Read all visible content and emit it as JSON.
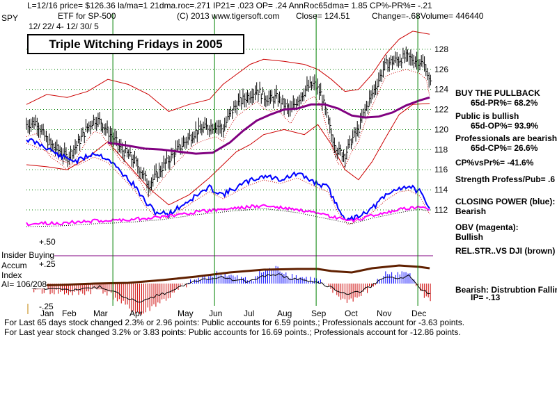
{
  "header": {
    "ticker": "SPY",
    "line1": "L=12/16  price= $126.36  la/ma=1 21dma.roc=.271 IP21= .023 OP= .24 AnnRoc65dma= 1.85 CP%-PR%= -.21",
    "etf": "ETF for SP-500",
    "copyright": "(C) 2013 www.tigersoft.com",
    "close": "Close=  124.51",
    "change": "Change=-.68",
    "volume": "Volume= 446440",
    "date_range": "12/ 22/ 4- 12/ 30/ 5"
  },
  "chart_title": "Triple Witching Fridays in 2005",
  "annotations": {
    "buy_pullback": "BUY THE PULLBACK",
    "pr": "65d-PR%= 68.2%",
    "public_bullish": "Public is bullish",
    "op": "65d-OP%= 93.9%",
    "pros_bearish": "Professionals are bearish",
    "cp": "65d-CP%= 26.6%",
    "cpvspr": "CP%vsPr%= -41.6%",
    "strength": "Strength Profess/Pub= .6",
    "closing_power_label": "CLOSING POWER (blue):",
    "closing_power_value": "Bearish",
    "obv_label": "OBV (magenta):",
    "obv_value": "Bullish",
    "rel_str": "REL.STR..VS DJI (brown)",
    "bearish_label": "Bearish:  Distrubtion Falling",
    "ip": "IP= -.13"
  },
  "lower_panel": {
    "insider_buying": "Insider Buying",
    "accum": "Accum",
    "index": "Index",
    "ai": "AI= 106/208",
    "plus50": "+.50",
    "plus25": "+.25",
    "minus25": "-.25"
  },
  "footer": {
    "line1": "For Last 65 days stock changed  2.3% or  2.96 points:  Public accounts for  6.59 points.;  Professionals account for -3.63 points.",
    "line2": "For Last year stock changed  3.2% or  3.83 points:  Public accounts for  16.69 points.;  Professionals account for -12.86 points."
  },
  "colors": {
    "price": "#000000",
    "band": "#cc0000",
    "ma65": "#800080",
    "closing_power": "#0000ff",
    "obv": "#ff00ff",
    "grid": "#008000",
    "witching": "#008000",
    "accum_pos": "#0000ff",
    "accum_neg": "#cc0000",
    "rel_str": "#602000"
  },
  "chart_data": {
    "type": "line",
    "title": "Triple Witching Fridays in 2005",
    "ticker": "SPY",
    "months": [
      "Jan",
      "Feb",
      "Mar",
      "Apr",
      "May",
      "Jun",
      "Jul",
      "Aug",
      "Sep",
      "Oct",
      "Nov",
      "Dec"
    ],
    "ylim": [
      112,
      130
    ],
    "y_ticks": [
      112,
      114,
      116,
      118,
      120,
      122,
      124,
      126,
      128
    ],
    "witching_months": [
      2.55,
      5.55,
      8.55,
      11.55
    ],
    "price": [
      [
        0,
        120.5
      ],
      [
        0.3,
        120.8
      ],
      [
        0.5,
        119.5
      ],
      [
        0.7,
        118.5
      ],
      [
        1.0,
        117.8
      ],
      [
        1.2,
        117.2
      ],
      [
        1.5,
        118.5
      ],
      [
        1.8,
        120.2
      ],
      [
        2.0,
        121.0
      ],
      [
        2.2,
        120.8
      ],
      [
        2.4,
        119.8
      ],
      [
        2.6,
        119.0
      ],
      [
        2.8,
        118.0
      ],
      [
        3.0,
        117.5
      ],
      [
        3.2,
        116.8
      ],
      [
        3.4,
        115.8
      ],
      [
        3.6,
        114.5
      ],
      [
        3.8,
        115.3
      ],
      [
        4.0,
        116.2
      ],
      [
        4.2,
        117.0
      ],
      [
        4.4,
        117.8
      ],
      [
        4.6,
        118.5
      ],
      [
        4.8,
        119.2
      ],
      [
        5.0,
        119.8
      ],
      [
        5.3,
        120.2
      ],
      [
        5.6,
        120.5
      ],
      [
        5.8,
        120.0
      ],
      [
        6.0,
        121.5
      ],
      [
        6.2,
        122.5
      ],
      [
        6.4,
        123.0
      ],
      [
        6.6,
        123.5
      ],
      [
        6.8,
        124.0
      ],
      [
        7.0,
        123.3
      ],
      [
        7.2,
        123.0
      ],
      [
        7.4,
        123.2
      ],
      [
        7.6,
        122.5
      ],
      [
        7.8,
        121.8
      ],
      [
        8.0,
        123.0
      ],
      [
        8.3,
        124.2
      ],
      [
        8.5,
        124.5
      ],
      [
        8.7,
        123.5
      ],
      [
        9.0,
        119.5
      ],
      [
        9.2,
        117.8
      ],
      [
        9.4,
        117.5
      ],
      [
        9.6,
        119.0
      ],
      [
        9.8,
        120.0
      ],
      [
        10.0,
        122.0
      ],
      [
        10.2,
        123.5
      ],
      [
        10.4,
        125.0
      ],
      [
        10.6,
        126.5
      ],
      [
        10.8,
        126.8
      ],
      [
        11.0,
        127.0
      ],
      [
        11.2,
        127.2
      ],
      [
        11.4,
        127.0
      ],
      [
        11.6,
        126.8
      ],
      [
        11.8,
        126.2
      ],
      [
        11.9,
        124.5
      ]
    ],
    "ma65": [
      [
        2.4,
        118.7
      ],
      [
        3.0,
        118.4
      ],
      [
        3.5,
        118.1
      ],
      [
        4.0,
        118.0
      ],
      [
        4.5,
        117.8
      ],
      [
        5.0,
        117.6
      ],
      [
        5.5,
        117.7
      ],
      [
        6.0,
        118.7
      ],
      [
        6.4,
        119.9
      ],
      [
        6.8,
        120.9
      ],
      [
        7.2,
        121.5
      ],
      [
        7.6,
        122.0
      ],
      [
        8.0,
        122.1
      ],
      [
        8.4,
        122.5
      ],
      [
        8.8,
        122.5
      ],
      [
        9.2,
        122.1
      ],
      [
        9.6,
        121.4
      ],
      [
        10.0,
        121.2
      ],
      [
        10.4,
        121.3
      ],
      [
        10.8,
        121.7
      ],
      [
        11.2,
        122.4
      ],
      [
        11.6,
        122.9
      ],
      [
        11.9,
        123.2
      ]
    ],
    "upper_band": [
      [
        0,
        122.5
      ],
      [
        0.6,
        123.5
      ],
      [
        1.2,
        123.2
      ],
      [
        1.8,
        123.8
      ],
      [
        2.4,
        125.0
      ],
      [
        3.0,
        124.5
      ],
      [
        3.6,
        123.5
      ],
      [
        4.2,
        121.8
      ],
      [
        4.8,
        122.5
      ],
      [
        5.4,
        123.0
      ],
      [
        5.8,
        124.5
      ],
      [
        6.2,
        125.5
      ],
      [
        6.6,
        126.5
      ],
      [
        7.0,
        127.0
      ],
      [
        7.6,
        126.8
      ],
      [
        8.2,
        126.5
      ],
      [
        8.6,
        126.0
      ],
      [
        9.0,
        125.0
      ],
      [
        9.4,
        123.8
      ],
      [
        9.8,
        124.0
      ],
      [
        10.2,
        125.5
      ],
      [
        10.6,
        127.5
      ],
      [
        11.0,
        129.0
      ],
      [
        11.4,
        129.8
      ],
      [
        11.9,
        129.5
      ]
    ],
    "lower_band": [
      [
        0,
        116.5
      ],
      [
        0.6,
        116.3
      ],
      [
        1.2,
        116.0
      ],
      [
        1.8,
        117.2
      ],
      [
        2.4,
        118.8
      ],
      [
        3.0,
        116.5
      ],
      [
        3.6,
        114.2
      ],
      [
        4.2,
        112.5
      ],
      [
        4.8,
        113.5
      ],
      [
        5.4,
        115.2
      ],
      [
        5.8,
        116.5
      ],
      [
        6.2,
        117.8
      ],
      [
        6.6,
        118.5
      ],
      [
        7.0,
        119.5
      ],
      [
        7.6,
        120.0
      ],
      [
        8.2,
        119.5
      ],
      [
        8.6,
        120.5
      ],
      [
        9.0,
        118.5
      ],
      [
        9.4,
        116.0
      ],
      [
        9.8,
        115.0
      ],
      [
        10.2,
        116.8
      ],
      [
        10.6,
        119.2
      ],
      [
        11.0,
        121.5
      ],
      [
        11.4,
        122.5
      ],
      [
        11.9,
        122.6
      ]
    ]
  }
}
